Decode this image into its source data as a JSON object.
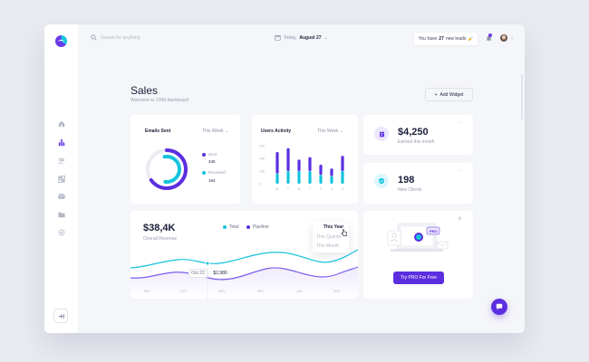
{
  "search": {
    "placeholder": "Search for anything"
  },
  "header": {
    "date_prefix": "Today,",
    "date_value": "August 27",
    "leads_prefix": "You have",
    "leads_count": "27",
    "leads_suffix": "new leads"
  },
  "page": {
    "title": "Sales",
    "subtitle": "Welcome to CRM dashboard",
    "add_widget_label": "Add Widget"
  },
  "sidebar": {
    "items": [
      {
        "icon": "home-icon"
      },
      {
        "icon": "org-chart-icon"
      },
      {
        "icon": "users-icon"
      },
      {
        "icon": "widgets-icon"
      },
      {
        "icon": "mail-icon"
      },
      {
        "icon": "folder-icon"
      },
      {
        "icon": "settings-icon"
      }
    ],
    "collapse_icon": "collapse-icon"
  },
  "emails": {
    "title": "Emails Sent",
    "period": "This Week",
    "sent_label": "Sent",
    "sent_value": "345",
    "received_label": "Received",
    "received_value": "194"
  },
  "activity": {
    "title": "Users Activity",
    "period": "This Week",
    "y_ticks": [
      "30K",
      "20K",
      "10K",
      "0"
    ],
    "days": [
      "M",
      "T",
      "W",
      "T",
      "F",
      "S",
      "S"
    ]
  },
  "earned": {
    "value": "$4,250",
    "label": "Earned this month",
    "icon": "wallet-icon"
  },
  "clients": {
    "value": "198",
    "label": "New Clients",
    "icon": "badge-icon"
  },
  "revenue": {
    "value": "$38,4K",
    "label": "Overall Revenue",
    "legend_total": "Total",
    "legend_pipeline": "Pipeline",
    "period_options": [
      "This Year",
      "This Quarter",
      "This Month"
    ],
    "tooltip_date": "Oct 22",
    "tooltip_value": "$2,980",
    "x_labels": [
      "SEP",
      "OCT",
      "NOV",
      "DEC",
      "JAN",
      "FEB"
    ]
  },
  "promo": {
    "button_label": "Try PRO For Free",
    "badge": "PRO"
  },
  "colors": {
    "primary": "#5b2fe0",
    "accent": "#14c3dc",
    "bg": "#f5f6f9"
  },
  "chart_data": {
    "type": "bar",
    "title": "Users Activity",
    "categories": [
      "M",
      "T",
      "W",
      "T",
      "F",
      "S",
      "S"
    ],
    "series": [
      {
        "values": [
          8,
          10,
          10,
          10,
          7,
          6,
          10
        ]
      },
      {
        "values": [
          17,
          18,
          9,
          11,
          8,
          6,
          12
        ]
      }
    ],
    "ylim": [
      0,
      30
    ],
    "y_ticks": [
      "30K",
      "20K",
      "10K",
      "0"
    ],
    "stacked": true
  }
}
